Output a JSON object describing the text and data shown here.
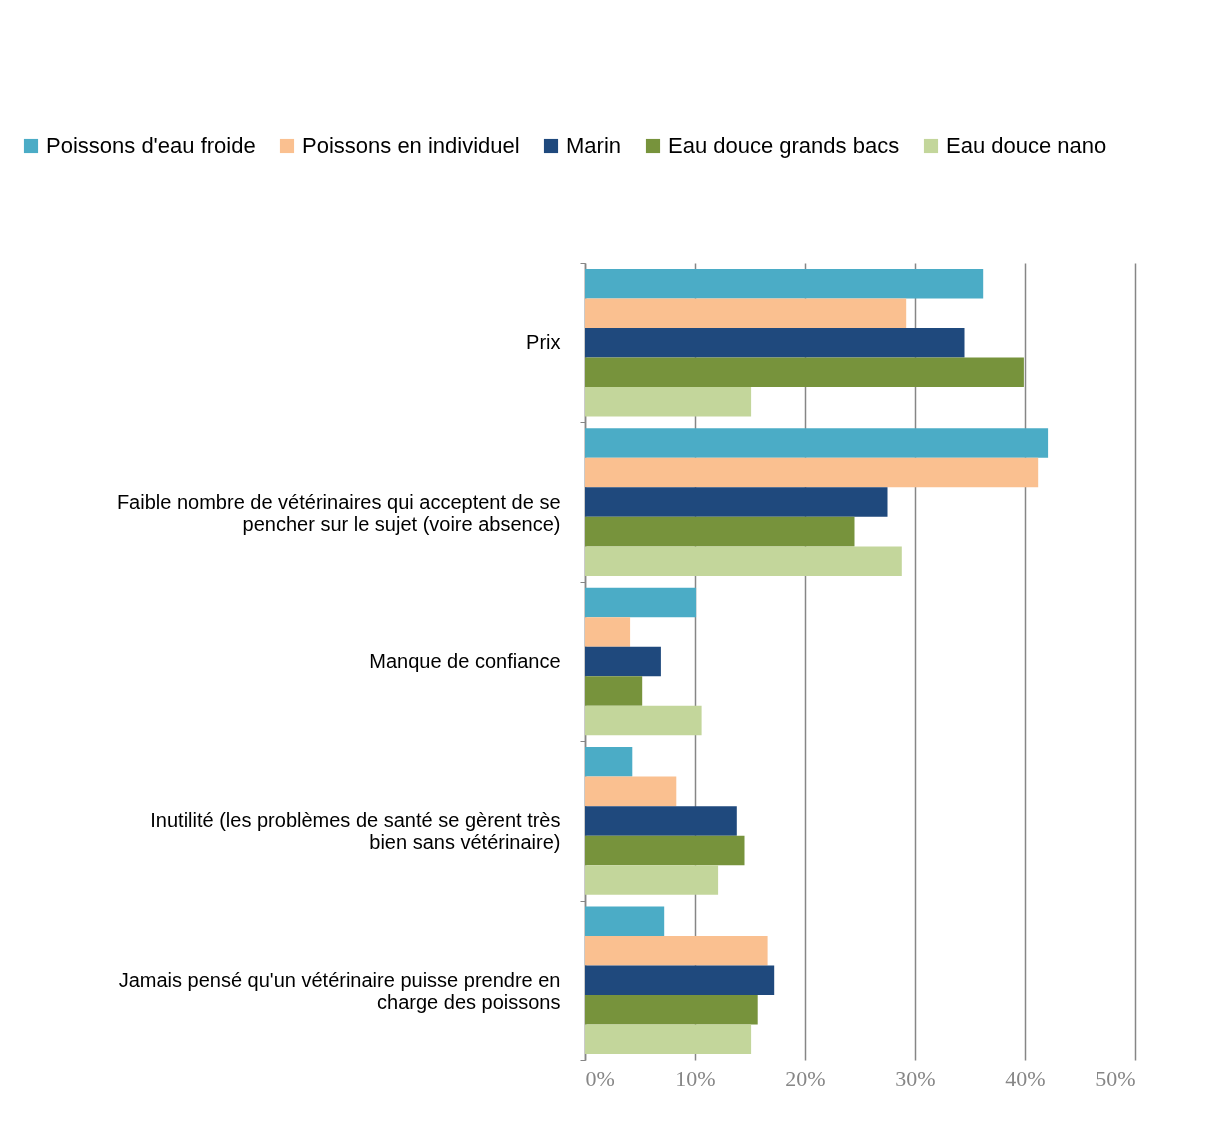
{
  "chart_data": {
    "type": "bar",
    "orientation": "horizontal",
    "categories": [
      "Prix",
      "Faible nombre de vétérinaires qui acceptent de se pencher sur le sujet (voire absence)",
      "Manque de confiance",
      "Inutilité (les problèmes de santé se gèrent très bien sans vétérinaire)",
      "Jamais pensé qu'un vétérinaire puisse prendre en charge des poissons"
    ],
    "series": [
      {
        "name": "Poissons d'eau froide",
        "color": "#4bacc6",
        "values": [
          36.2,
          42.1,
          10.1,
          4.3,
          7.2
        ]
      },
      {
        "name": "Poissons en individuel",
        "color": "#fac090",
        "values": [
          29.2,
          41.2,
          4.1,
          8.3,
          16.6
        ]
      },
      {
        "name": "Marin",
        "color": "#1f497d",
        "values": [
          34.5,
          27.5,
          6.9,
          13.8,
          17.2
        ]
      },
      {
        "name": "Eau douce grands bacs",
        "color": "#77933c",
        "values": [
          39.9,
          24.5,
          5.2,
          14.5,
          15.7
        ]
      },
      {
        "name": "Eau douce nano",
        "color": "#c3d69b",
        "values": [
          15.1,
          28.8,
          10.6,
          12.1,
          15.1
        ]
      }
    ],
    "xlim": [
      0,
      50
    ],
    "xticks": [
      {
        "value": 0,
        "label": "0%"
      },
      {
        "value": 10,
        "label": "10%"
      },
      {
        "value": 20,
        "label": "20%"
      },
      {
        "value": 30,
        "label": "30%"
      },
      {
        "value": 40,
        "label": "40%"
      },
      {
        "value": 50,
        "label": "50%"
      }
    ],
    "grid": "x",
    "legend": "top"
  }
}
